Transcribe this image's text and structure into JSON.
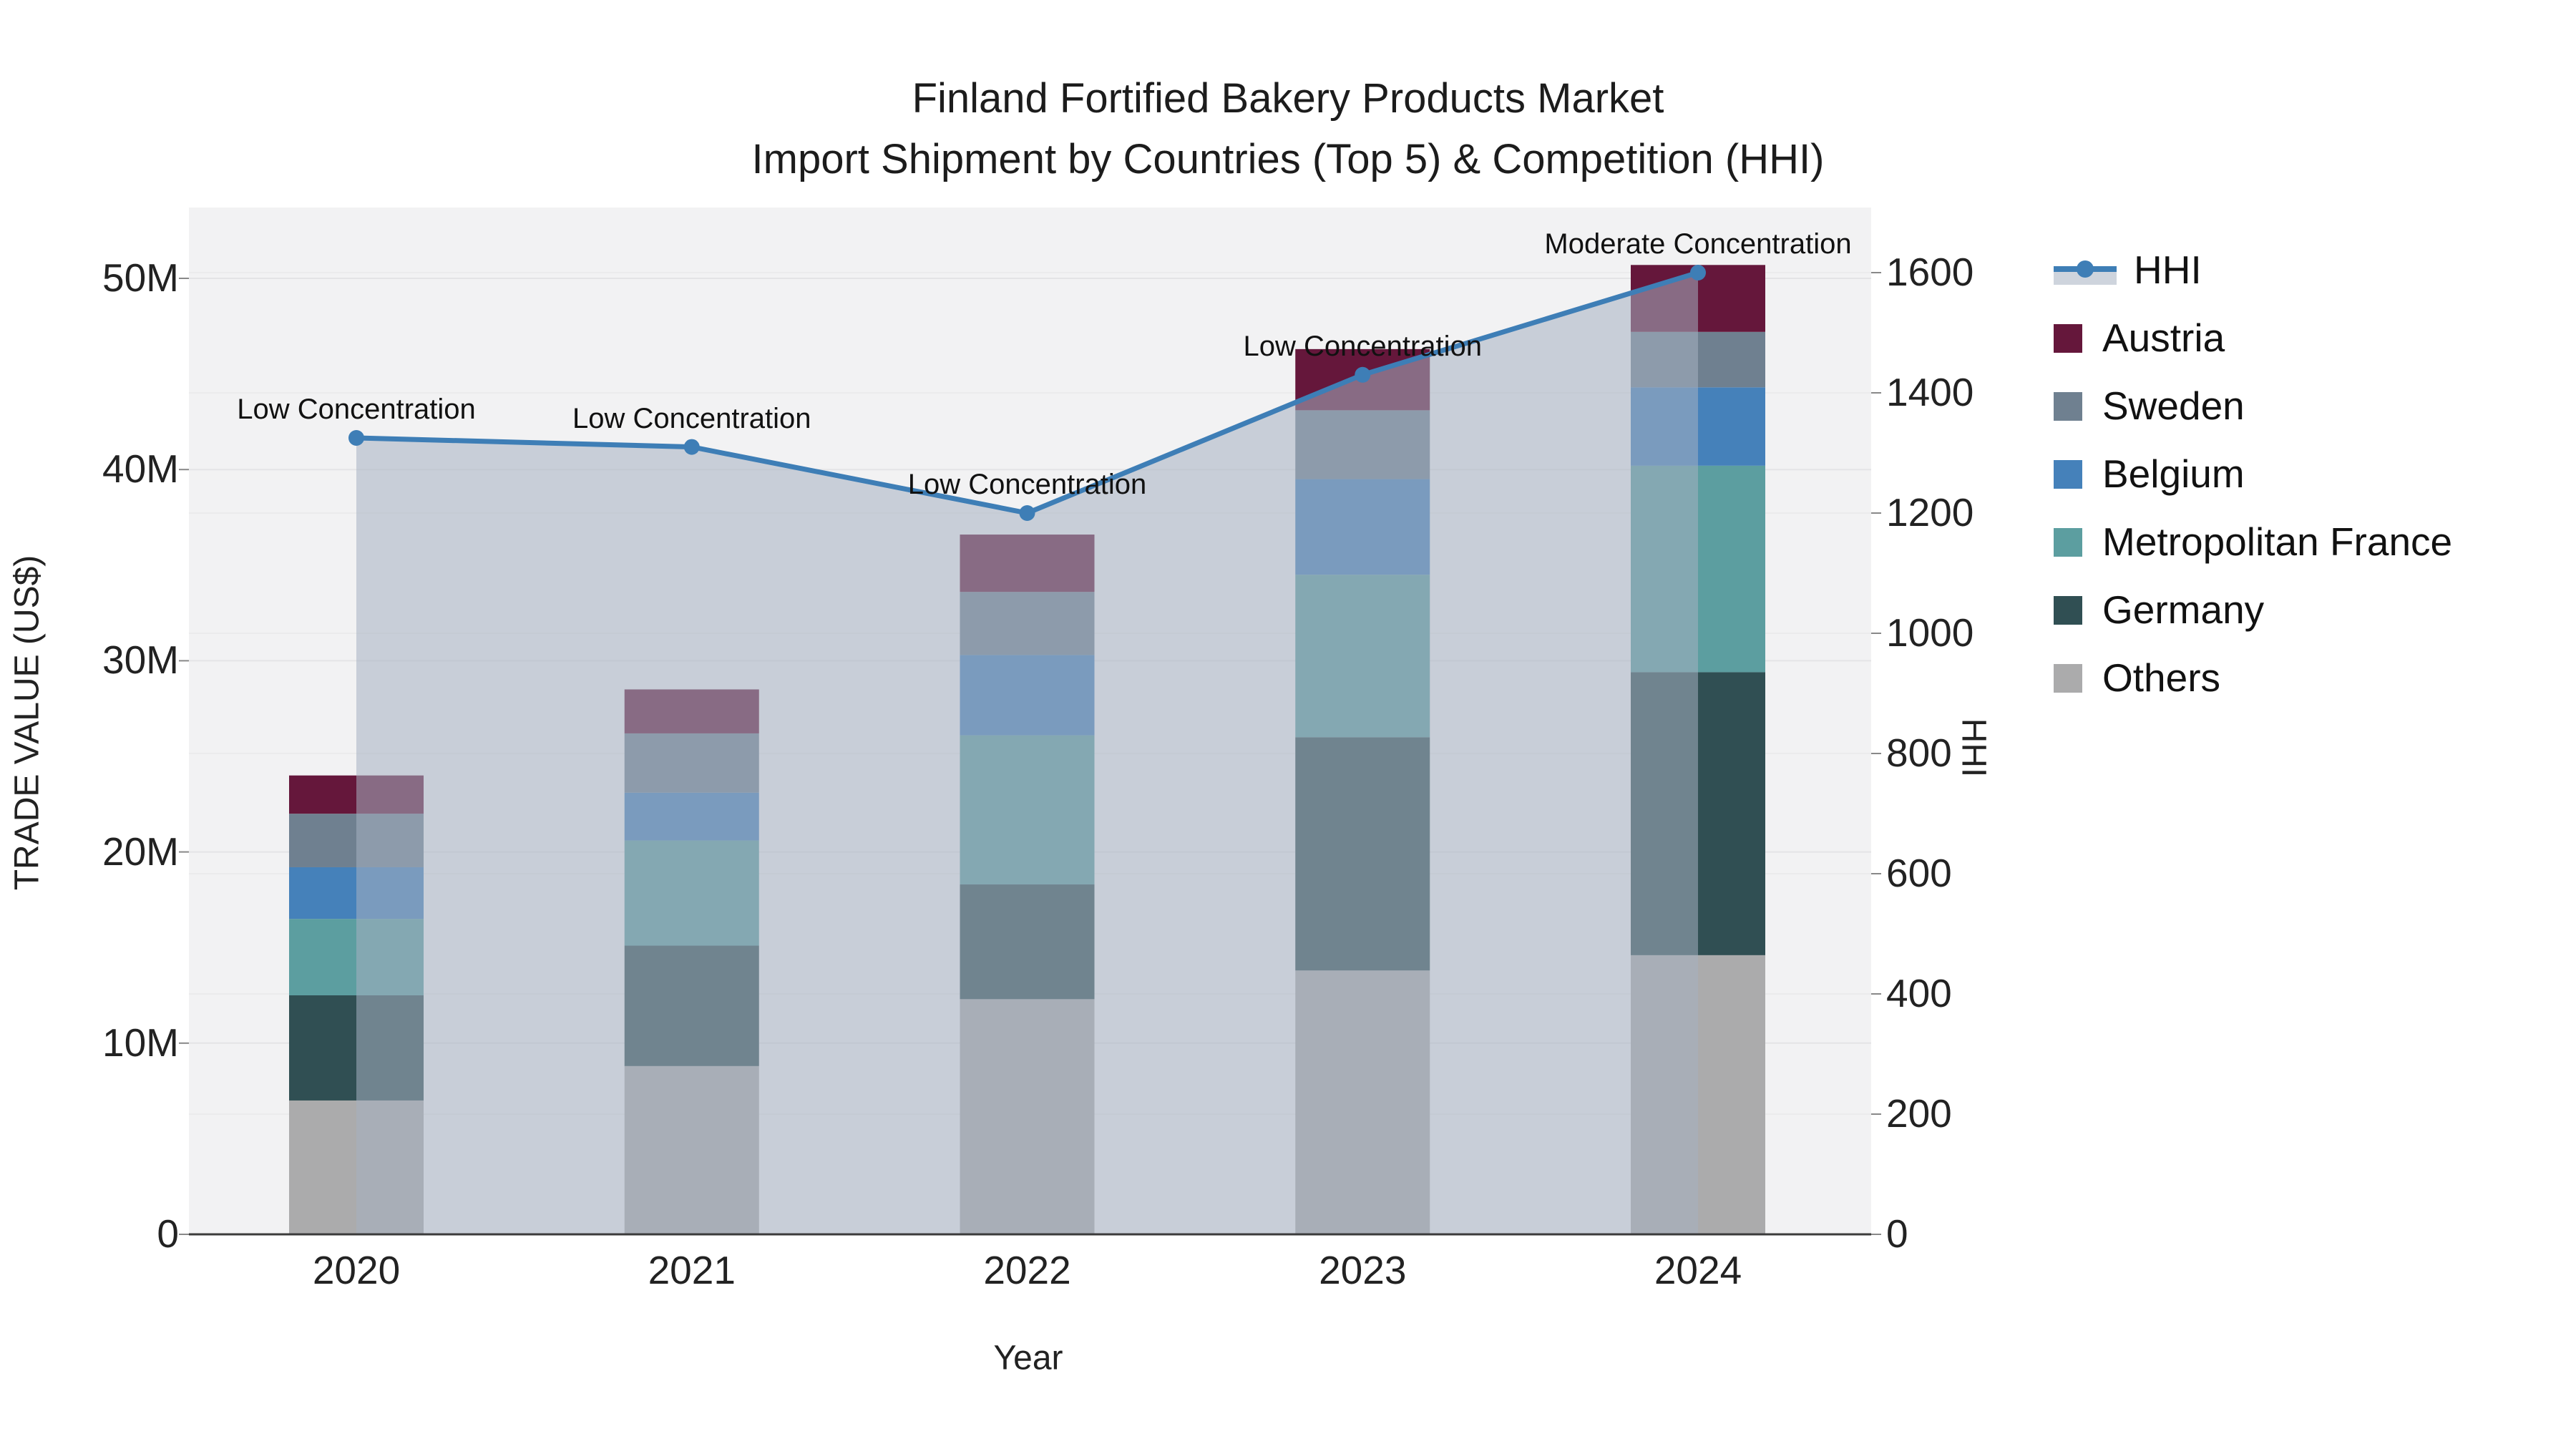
{
  "title": {
    "line1": "Finland Fortified Bakery Products Market",
    "line2": "Import Shipment by Countries (Top 5) & Competition (HHI)"
  },
  "axes": {
    "x": {
      "title": "Year",
      "ticks": [
        "2020",
        "2021",
        "2022",
        "2023",
        "2024"
      ]
    },
    "y_left": {
      "title": "TRADE VALUE (US$)",
      "tick_labels": [
        "0",
        "10M",
        "20M",
        "30M",
        "40M",
        "50M"
      ],
      "tick_values": [
        0,
        10,
        20,
        30,
        40,
        50
      ]
    },
    "y_right": {
      "title": "HHI",
      "tick_labels": [
        "0",
        "200",
        "400",
        "600",
        "800",
        "1000",
        "1200",
        "1400",
        "1600"
      ],
      "tick_values": [
        0,
        200,
        400,
        600,
        800,
        1000,
        1200,
        1400,
        1600
      ]
    }
  },
  "legend_title_hhi": "HHI",
  "colors": {
    "plot_bg": "#f2f2f3",
    "grid_left": "#e4e4e6",
    "grid_right": "#ebebec",
    "axis_line": "#3b3b3b",
    "hhi_line": "#3e7eb6",
    "hhi_fill": "rgba(165,177,193,0.55)"
  },
  "chart_data": {
    "type": "bar+line",
    "title": "Finland Fortified Bakery Products Market — Import Shipment by Countries (Top 5) & Competition (HHI)",
    "categories": [
      "2020",
      "2021",
      "2022",
      "2023",
      "2024"
    ],
    "value_unit": "million US$",
    "stack_order_bottom_to_top": [
      "Others",
      "Germany",
      "Metropolitan France",
      "Belgium",
      "Sweden",
      "Austria"
    ],
    "series": [
      {
        "name": "Austria",
        "color": "#65173b",
        "values": [
          2.0,
          2.3,
          3.0,
          3.2,
          3.5
        ]
      },
      {
        "name": "Sweden",
        "color": "#6f8090",
        "values": [
          2.8,
          3.1,
          3.3,
          3.6,
          2.9
        ]
      },
      {
        "name": "Belgium",
        "color": "#4581ba",
        "values": [
          2.7,
          2.5,
          4.2,
          5.0,
          4.1
        ]
      },
      {
        "name": "Metropolitan France",
        "color": "#5c9ea0",
        "values": [
          4.0,
          5.5,
          7.8,
          8.5,
          10.8
        ]
      },
      {
        "name": "Germany",
        "color": "#304f53",
        "values": [
          5.5,
          6.3,
          6.0,
          12.2,
          14.8
        ]
      },
      {
        "name": "Others",
        "color": "#ababac",
        "values": [
          7.0,
          8.8,
          12.3,
          13.8,
          14.6
        ]
      }
    ],
    "bar_totals": [
      24.0,
      28.5,
      36.6,
      46.3,
      50.7
    ],
    "line_series": {
      "name": "HHI",
      "values": [
        1325,
        1310,
        1200,
        1430,
        1600
      ]
    },
    "annotations": [
      {
        "category": "2020",
        "text": "Low Concentration"
      },
      {
        "category": "2021",
        "text": "Low Concentration"
      },
      {
        "category": "2022",
        "text": "Low Concentration"
      },
      {
        "category": "2023",
        "text": "Low Concentration"
      },
      {
        "category": "2024",
        "text": "Moderate Concentration"
      }
    ],
    "xlabel": "Year",
    "ylabel_left": "TRADE VALUE (US$)",
    "ylabel_right": "HHI",
    "ylim_left": [
      0,
      53.7
    ],
    "ylim_right": [
      0,
      1712
    ],
    "grid": true,
    "legend_position": "right"
  }
}
